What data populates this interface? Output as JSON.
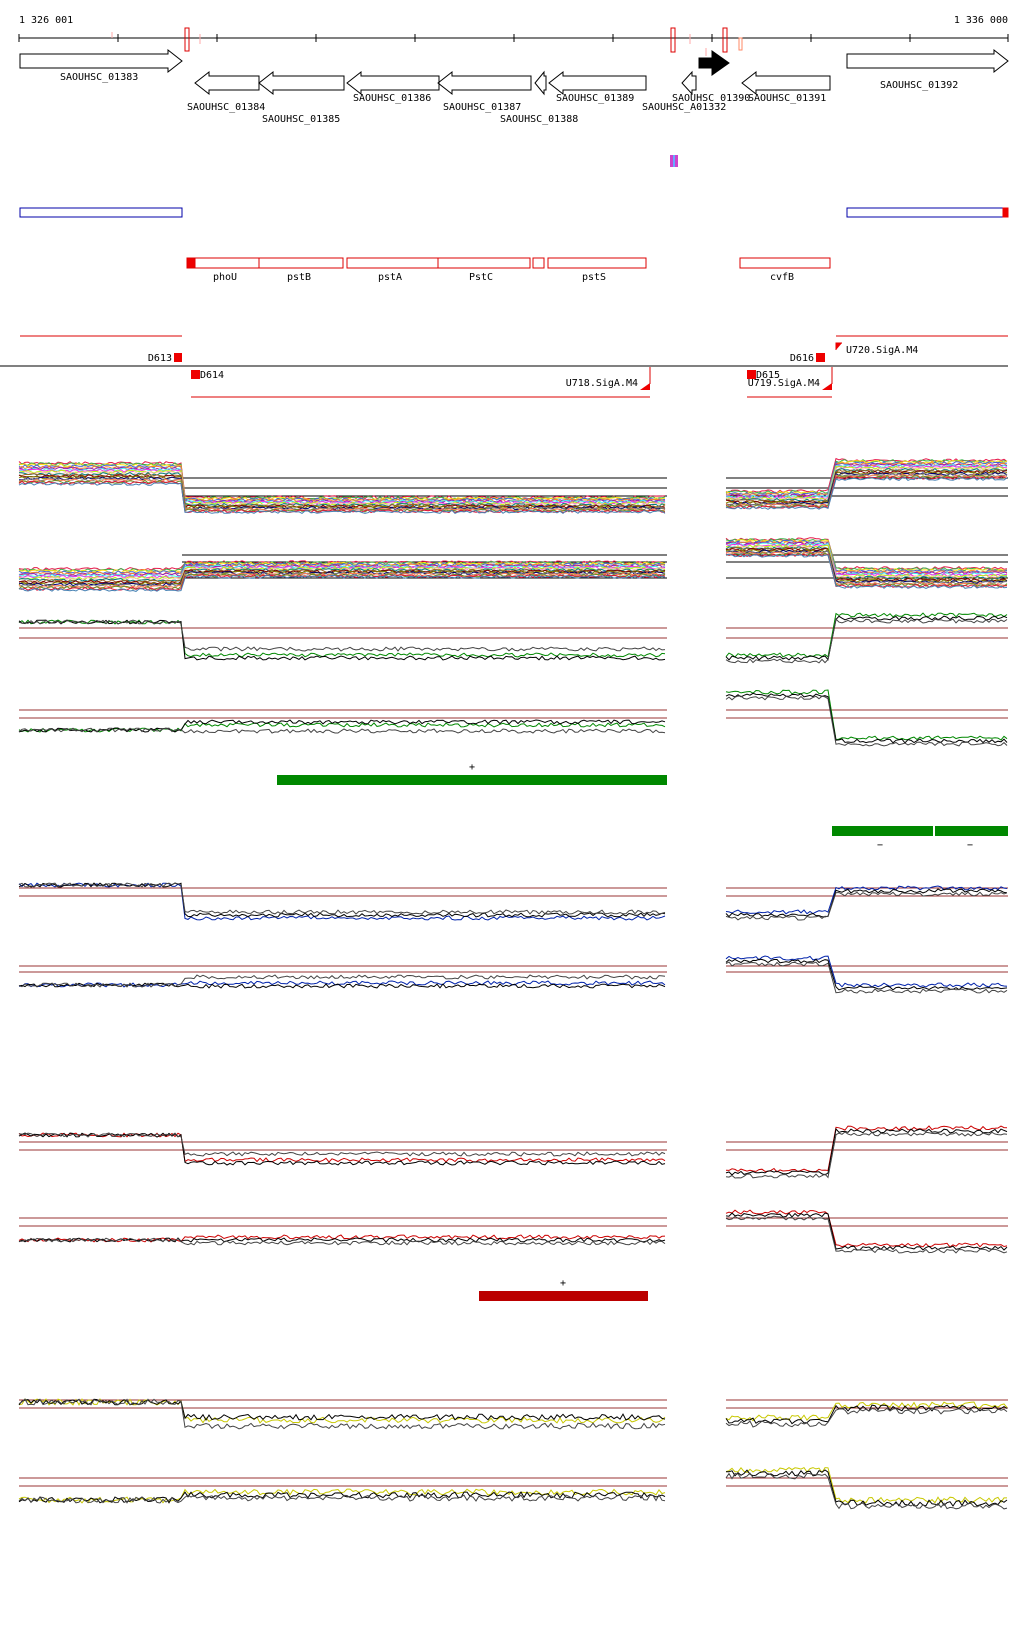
{
  "ruler": {
    "start_label": "1 326 001",
    "end_label": "1 336 000"
  },
  "genes": {
    "forward": [
      {
        "label": "SAOUHSC_01383"
      },
      {
        "label": "SAOUHSC_01392"
      }
    ],
    "reverse": [
      {
        "label": "SAOUHSC_01384"
      },
      {
        "label": "SAOUHSC_01385"
      },
      {
        "label": "SAOUHSC_01386"
      },
      {
        "label": "SAOUHSC_01387"
      },
      {
        "label": "SAOUHSC_01388"
      },
      {
        "label": "SAOUHSC_01389"
      },
      {
        "label": "SAOUHSC_A01332"
      },
      {
        "label": "SAOUHSC_01390"
      },
      {
        "label": "SAOUHSC_01391"
      }
    ]
  },
  "operon_names": [
    "phoU",
    "pstB",
    "pstA",
    "PstC",
    "pstS",
    "cvfB"
  ],
  "transcription_units": {
    "downstream": [
      "D613",
      "D614",
      "D615",
      "D616"
    ],
    "upstream": [
      "U718.SigA.M4",
      "U719.SigA.M4",
      "U720.SigA.M4"
    ]
  },
  "strand_marks": {
    "green_plus": "+",
    "green_minus_left": "−",
    "green_minus_right": "−",
    "red_plus": "+"
  },
  "colors": {
    "forward_gene": "#000000",
    "operon": "#dd0000",
    "blue_box": "#0000aa",
    "green": "#008800",
    "blue": "#0022aa",
    "red": "#cc0000",
    "yellow": "#c8c800",
    "threshold": "#993333"
  }
}
